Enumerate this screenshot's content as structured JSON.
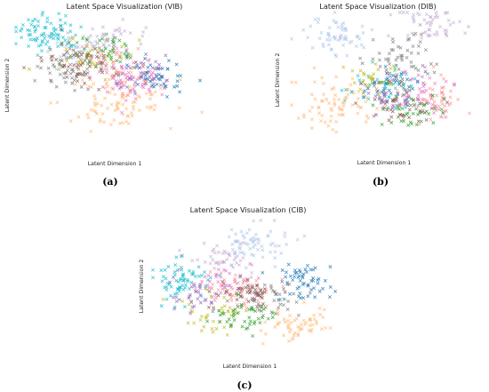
{
  "figure": {
    "captions": [
      "(a)",
      "(b)",
      "(c)"
    ]
  },
  "chart_data": [
    {
      "type": "scatter",
      "title": "Latent Space Visualization (VIB)",
      "xlabel": "Latent Dimension 1",
      "ylabel": "Latent Dimension 2",
      "grid": false,
      "axes_visible": false,
      "marker": "x",
      "classes": [
        {
          "color": "#17becf",
          "center": [
            0.16,
            0.15
          ],
          "spread": [
            0.08,
            0.07
          ],
          "n": 80
        },
        {
          "color": "#aec7e8",
          "center": [
            0.3,
            0.28
          ],
          "spread": [
            0.08,
            0.07
          ],
          "n": 40
        },
        {
          "color": "#2ca02c",
          "center": [
            0.45,
            0.3
          ],
          "spread": [
            0.1,
            0.08
          ],
          "n": 45
        },
        {
          "color": "#bcbd22",
          "center": [
            0.38,
            0.35
          ],
          "spread": [
            0.09,
            0.07
          ],
          "n": 40
        },
        {
          "color": "#8c564b",
          "center": [
            0.33,
            0.4
          ],
          "spread": [
            0.1,
            0.08
          ],
          "n": 60
        },
        {
          "color": "#7f7f7f",
          "center": [
            0.27,
            0.43
          ],
          "spread": [
            0.1,
            0.07
          ],
          "n": 50
        },
        {
          "color": "#e377c2",
          "center": [
            0.58,
            0.5
          ],
          "spread": [
            0.1,
            0.08
          ],
          "n": 70
        },
        {
          "color": "#9467bd",
          "center": [
            0.64,
            0.45
          ],
          "spread": [
            0.08,
            0.08
          ],
          "n": 45
        },
        {
          "color": "#1f77b4",
          "center": [
            0.74,
            0.47
          ],
          "spread": [
            0.08,
            0.07
          ],
          "n": 40
        },
        {
          "color": "#ff9896",
          "center": [
            0.52,
            0.42
          ],
          "spread": [
            0.1,
            0.08
          ],
          "n": 35
        },
        {
          "color": "#ffbb78",
          "center": [
            0.5,
            0.68
          ],
          "spread": [
            0.14,
            0.1
          ],
          "n": 90
        },
        {
          "color": "#c5b0d5",
          "center": [
            0.47,
            0.18
          ],
          "spread": [
            0.1,
            0.07
          ],
          "n": 40
        }
      ]
    },
    {
      "type": "scatter",
      "title": "Latent Space Visualization (DIB)",
      "xlabel": "Latent Dimension 1",
      "ylabel": "Latent Dimension 2",
      "grid": false,
      "axes_visible": false,
      "marker": "x",
      "classes": [
        {
          "color": "#aec7e8",
          "center": [
            0.26,
            0.18
          ],
          "spread": [
            0.09,
            0.08
          ],
          "n": 60
        },
        {
          "color": "#c5b0d5",
          "center": [
            0.78,
            0.1
          ],
          "spread": [
            0.09,
            0.07
          ],
          "n": 55
        },
        {
          "color": "#7f7f7f",
          "center": [
            0.58,
            0.35
          ],
          "spread": [
            0.1,
            0.1
          ],
          "n": 60
        },
        {
          "color": "#17becf",
          "center": [
            0.5,
            0.55
          ],
          "spread": [
            0.1,
            0.08
          ],
          "n": 45
        },
        {
          "color": "#1f77b4",
          "center": [
            0.57,
            0.52
          ],
          "spread": [
            0.08,
            0.08
          ],
          "n": 35
        },
        {
          "color": "#bcbd22",
          "center": [
            0.47,
            0.5
          ],
          "spread": [
            0.08,
            0.07
          ],
          "n": 30
        },
        {
          "color": "#e377c2",
          "center": [
            0.7,
            0.62
          ],
          "spread": [
            0.1,
            0.08
          ],
          "n": 55
        },
        {
          "color": "#ff9896",
          "center": [
            0.83,
            0.66
          ],
          "spread": [
            0.07,
            0.08
          ],
          "n": 40
        },
        {
          "color": "#2ca02c",
          "center": [
            0.68,
            0.73
          ],
          "spread": [
            0.1,
            0.07
          ],
          "n": 45
        },
        {
          "color": "#ffbb78",
          "center": [
            0.28,
            0.68
          ],
          "spread": [
            0.12,
            0.09
          ],
          "n": 80
        },
        {
          "color": "#8c564b",
          "center": [
            0.6,
            0.7
          ],
          "spread": [
            0.1,
            0.08
          ],
          "n": 35
        },
        {
          "color": "#9467bd",
          "center": [
            0.55,
            0.62
          ],
          "spread": [
            0.08,
            0.07
          ],
          "n": 30
        }
      ]
    },
    {
      "type": "scatter",
      "title": "Latent Space Visualization (CIB)",
      "xlabel": "Latent Dimension 1",
      "ylabel": "Latent Dimension 2",
      "grid": false,
      "axes_visible": false,
      "marker": "x",
      "classes": [
        {
          "color": "#aec7e8",
          "center": [
            0.54,
            0.17
          ],
          "spread": [
            0.1,
            0.07
          ],
          "n": 65
        },
        {
          "color": "#c5b0d5",
          "center": [
            0.38,
            0.27
          ],
          "spread": [
            0.09,
            0.07
          ],
          "n": 45
        },
        {
          "color": "#17becf",
          "center": [
            0.15,
            0.45
          ],
          "spread": [
            0.07,
            0.08
          ],
          "n": 70
        },
        {
          "color": "#1f77b4",
          "center": [
            0.8,
            0.48
          ],
          "spread": [
            0.08,
            0.07
          ],
          "n": 60
        },
        {
          "color": "#e377c2",
          "center": [
            0.37,
            0.48
          ],
          "spread": [
            0.09,
            0.07
          ],
          "n": 50
        },
        {
          "color": "#ff9896",
          "center": [
            0.44,
            0.52
          ],
          "spread": [
            0.09,
            0.07
          ],
          "n": 45
        },
        {
          "color": "#7f7f7f",
          "center": [
            0.58,
            0.58
          ],
          "spread": [
            0.1,
            0.07
          ],
          "n": 45
        },
        {
          "color": "#8c564b",
          "center": [
            0.52,
            0.55
          ],
          "spread": [
            0.09,
            0.06
          ],
          "n": 40
        },
        {
          "color": "#bcbd22",
          "center": [
            0.32,
            0.72
          ],
          "spread": [
            0.08,
            0.08
          ],
          "n": 40
        },
        {
          "color": "#2ca02c",
          "center": [
            0.5,
            0.73
          ],
          "spread": [
            0.08,
            0.07
          ],
          "n": 45
        },
        {
          "color": "#ffbb78",
          "center": [
            0.78,
            0.8
          ],
          "spread": [
            0.1,
            0.07
          ],
          "n": 60
        },
        {
          "color": "#9467bd",
          "center": [
            0.24,
            0.58
          ],
          "spread": [
            0.08,
            0.07
          ],
          "n": 30
        }
      ]
    }
  ]
}
